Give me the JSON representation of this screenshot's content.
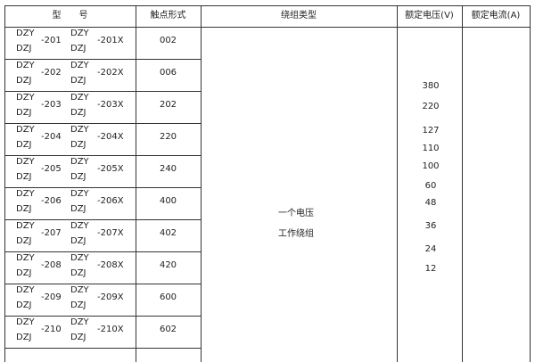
{
  "headers": {
    "model": "型　　号",
    "contact": "触点形式",
    "winding": "绕组类型",
    "voltage": "额定电压(V)",
    "current": "额定电流(A)"
  },
  "rows": [
    {
      "a1": "DZY",
      "a2": "DZJ",
      "num": "-201",
      "b1": "DZY",
      "b2": "DZJ",
      "numx": "-201X",
      "contact": "002"
    },
    {
      "a1": "DZY",
      "a2": "DZJ",
      "num": "-202",
      "b1": "DZY",
      "b2": "DZJ",
      "numx": "-202X",
      "contact": "006"
    },
    {
      "a1": "DZY",
      "a2": "DZJ",
      "num": "-203",
      "b1": "DZY",
      "b2": "DZJ",
      "numx": "-203X",
      "contact": "202"
    },
    {
      "a1": "DZY",
      "a2": "DZJ",
      "num": "-204",
      "b1": "DZY",
      "b2": "DZJ",
      "numx": "-204X",
      "contact": "220"
    },
    {
      "a1": "DZY",
      "a2": "DZJ",
      "num": "-205",
      "b1": "DZY",
      "b2": "DZJ",
      "numx": "-205X",
      "contact": "240"
    },
    {
      "a1": "DZY",
      "a2": "DZJ",
      "num": "-206",
      "b1": "DZY",
      "b2": "DZJ",
      "numx": "-206X",
      "contact": "400"
    },
    {
      "a1": "DZY",
      "a2": "DZJ",
      "num": "-207",
      "b1": "DZY",
      "b2": "DZJ",
      "numx": "-207X",
      "contact": "402"
    },
    {
      "a1": "DZY",
      "a2": "DZJ",
      "num": "-208",
      "b1": "DZY",
      "b2": "DZJ",
      "numx": "-208X",
      "contact": "420"
    },
    {
      "a1": "DZY",
      "a2": "DZJ",
      "num": "-209",
      "b1": "DZY",
      "b2": "DZJ",
      "numx": "-209X",
      "contact": "600"
    },
    {
      "a1": "DZY",
      "a2": "DZJ",
      "num": "-210",
      "b1": "DZY",
      "b2": "DZJ",
      "numx": "-210X",
      "contact": "602"
    }
  ],
  "winding": {
    "line1": "一个电压",
    "line2": "工作绕组"
  },
  "voltages": [
    "380",
    "220",
    "127",
    "110",
    "100",
    "60",
    "48",
    "36",
    "24",
    "12"
  ]
}
